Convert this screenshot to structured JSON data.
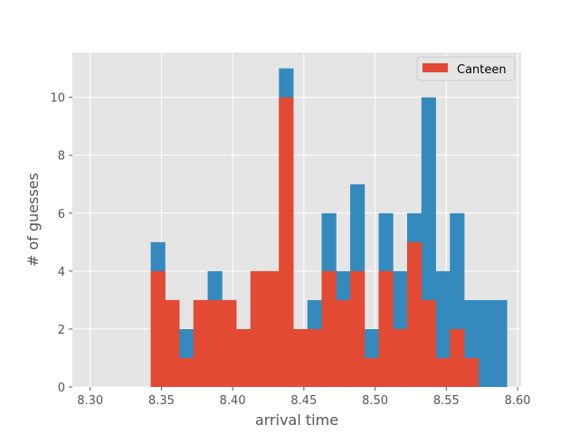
{
  "chart_data": {
    "type": "bar",
    "title": "",
    "xlabel": "arrival time",
    "ylabel": "# of guesses",
    "xlim": [
      8.2875,
      8.6025
    ],
    "ylim": [
      0,
      11.55
    ],
    "xticks": [
      "8.30",
      "8.35",
      "8.40",
      "8.45",
      "8.50",
      "8.55",
      "8.60"
    ],
    "yticks": [
      "0",
      "2",
      "4",
      "6",
      "8",
      "10"
    ],
    "grid": true,
    "legend_position": "top-right",
    "bin_edges": [
      8.3425,
      8.3525,
      8.3625,
      8.3725,
      8.3825,
      8.3925,
      8.4025,
      8.4125,
      8.4225,
      8.4325,
      8.4425,
      8.4525,
      8.4625,
      8.4725,
      8.4825,
      8.4925,
      8.5025,
      8.5125,
      8.5225,
      8.5325,
      8.5425,
      8.5525,
      8.5625,
      8.5725,
      8.5825,
      8.5925
    ],
    "series": [
      {
        "color": "#348ABD",
        "values": [
          5,
          3,
          2,
          3,
          4,
          3,
          2,
          4,
          4,
          11,
          2,
          3,
          6,
          4,
          7,
          2,
          6,
          4,
          6,
          10,
          4,
          6,
          3,
          3,
          3
        ]
      },
      {
        "name": "Canteen",
        "color": "#E24A33",
        "values": [
          4,
          3,
          1,
          3,
          3,
          3,
          2,
          4,
          4,
          10,
          2,
          2,
          4,
          3,
          4,
          1,
          4,
          2,
          5,
          3,
          1,
          2,
          1,
          0,
          0
        ]
      }
    ]
  },
  "style": {
    "axes_background": "#E5E5E5",
    "grid_color": "#FFFFFF",
    "text_color": "#555555"
  }
}
